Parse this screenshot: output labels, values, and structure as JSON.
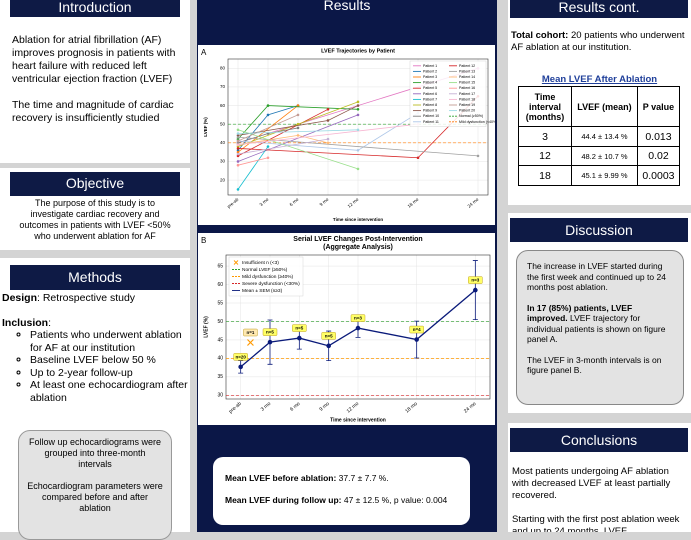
{
  "introduction": {
    "title": "Introduction",
    "paragraphs": [
      "Ablation for atrial fibrillation (AF) improves prognosis in patients with heart failure with reduced left ventricular ejection fraction (LVEF)",
      "The time and magnitude of cardiac recovery is insufficiently studied"
    ]
  },
  "objective": {
    "title": "Objective",
    "text": "The purpose of this study is to investigate cardiac recovery and outcomes in patients with LVEF <50% who underwent ablation for AF"
  },
  "methods": {
    "title": "Methods",
    "design_label": "Design",
    "design_text": ": Retrospective study",
    "inclusion_label": "Inclusion",
    "inclusion_suffix": ":",
    "bullets": [
      "Patients who underwent ablation for AF at our institution",
      "Baseline LVEF below 50 %",
      "Up to 2-year follow-up",
      "At least one echocardiogram after ablation"
    ],
    "note": [
      "Follow up echocardiograms were grouped into three-month intervals",
      "Echocardiogram parameters were compared before and after ablation"
    ]
  },
  "results": {
    "title": "Results",
    "summary": [
      {
        "label": "Mean LVEF before ablation:",
        "text": "37.7 ± 7.7 %."
      },
      {
        "label": "Mean LVEF during follow up:",
        "text": "47 ± 12.5 %, p value: 0.004"
      }
    ]
  },
  "chart_data": [
    {
      "type": "line",
      "panel": "A",
      "title": "LVEF Trajectories by Patient",
      "xlabel": "Time since intervention",
      "ylabel": "LVEF (%)",
      "xlim": [
        -1,
        25
      ],
      "ylim": [
        12,
        85
      ],
      "yticks": [
        20,
        30,
        40,
        50,
        60,
        70,
        80
      ],
      "xticks": [
        {
          "value": 0,
          "label": "pre-ab"
        },
        {
          "value": 3,
          "label": "3 mo"
        },
        {
          "value": 6,
          "label": "6 mo"
        },
        {
          "value": 9,
          "label": "9 mo"
        },
        {
          "value": 12,
          "label": "12 mo"
        },
        {
          "value": 18,
          "label": "18 mo"
        },
        {
          "value": 24,
          "label": "24 mo"
        }
      ],
      "grid": true,
      "legend": "upper right",
      "series": [
        {
          "name": "Patient 1",
          "color": "#e377c2",
          "x": [
            0,
            24
          ],
          "values": [
            40,
            80
          ]
        },
        {
          "name": "Patient 2",
          "color": "#1f77b4",
          "x": [
            0,
            3,
            6
          ],
          "values": [
            36,
            55,
            60
          ]
        },
        {
          "name": "Patient 3",
          "color": "#ff7f0e",
          "x": [
            0,
            6
          ],
          "values": [
            35,
            60
          ]
        },
        {
          "name": "Patient 4",
          "color": "#2ca02c",
          "x": [
            0,
            3,
            12
          ],
          "values": [
            42,
            60,
            58
          ]
        },
        {
          "name": "Patient 5",
          "color": "#d62728",
          "x": [
            0,
            9
          ],
          "values": [
            33,
            58
          ]
        },
        {
          "name": "Patient 6",
          "color": "#9467bd",
          "x": [
            0,
            12
          ],
          "values": [
            30,
            55
          ]
        },
        {
          "name": "Patient 7",
          "color": "#17becf",
          "x": [
            0,
            3
          ],
          "values": [
            15,
            38
          ]
        },
        {
          "name": "Patient 8",
          "color": "#bcbd22",
          "x": [
            0,
            6,
            12
          ],
          "values": [
            38,
            50,
            62
          ]
        },
        {
          "name": "Patient 9",
          "color": "#8c564b",
          "x": [
            0,
            9,
            12
          ],
          "values": [
            44,
            52,
            60
          ]
        },
        {
          "name": "Patient 10",
          "color": "#7f7f7f",
          "x": [
            0,
            3,
            6
          ],
          "values": [
            40,
            45,
            48
          ]
        },
        {
          "name": "Patient 11",
          "color": "#aec7e8",
          "x": [
            0,
            12,
            18
          ],
          "values": [
            41,
            36,
            56
          ]
        },
        {
          "name": "Patient 12",
          "color": "#d62728",
          "x": [
            0,
            18,
            24
          ],
          "values": [
            37,
            32,
            65
          ]
        },
        {
          "name": "Patient 13",
          "color": "#a0a0a0",
          "x": [
            0,
            24
          ],
          "values": [
            43,
            33
          ]
        },
        {
          "name": "Patient 14",
          "color": "#ffbb78",
          "x": [
            0,
            6,
            9
          ],
          "values": [
            39,
            44,
            40
          ]
        },
        {
          "name": "Patient 15",
          "color": "#98df8a",
          "x": [
            0,
            12
          ],
          "values": [
            47,
            26
          ]
        },
        {
          "name": "Patient 16",
          "color": "#ff9896",
          "x": [
            0,
            3
          ],
          "values": [
            28,
            32
          ]
        },
        {
          "name": "Patient 17",
          "color": "#c5b0d5",
          "x": [
            0,
            9
          ],
          "values": [
            34,
            42
          ]
        },
        {
          "name": "Patient 18",
          "color": "#f7b6d2",
          "x": [
            0,
            18
          ],
          "values": [
            39,
            50
          ]
        },
        {
          "name": "Patient 19",
          "color": "#c49c94",
          "x": [
            0,
            6
          ],
          "values": [
            41,
            55
          ]
        },
        {
          "name": "Patient 20",
          "color": "#9edae5",
          "x": [
            0,
            12
          ],
          "values": [
            45,
            47
          ]
        }
      ],
      "ref_lines": [
        {
          "name": "Normal (≥50%)",
          "value": 50,
          "color": "#2ca02c"
        },
        {
          "name": "Mild dysfunction (<40%)",
          "value": 40,
          "color": "#ff7f0e"
        }
      ]
    },
    {
      "type": "errorbar",
      "panel": "B",
      "title": "Serial LVEF Changes Post-Intervention",
      "subtitle": "(Aggregate Analysis)",
      "xlabel": "Time since intervention",
      "ylabel": "LVEF (%)",
      "xlim": [
        -1.5,
        25.5
      ],
      "ylim": [
        29,
        68
      ],
      "yticks": [
        30,
        35,
        40,
        45,
        50,
        55,
        60,
        65
      ],
      "xticks": [
        {
          "value": 0,
          "label": "pre-ab"
        },
        {
          "value": 3,
          "label": "3 mo"
        },
        {
          "value": 6,
          "label": "6 mo"
        },
        {
          "value": 9,
          "label": "9 mo"
        },
        {
          "value": 12,
          "label": "12 mo"
        },
        {
          "value": 18,
          "label": "18 mo"
        },
        {
          "value": 24,
          "label": "24 mo"
        }
      ],
      "grid": true,
      "legend": "upper left",
      "series": [
        {
          "name": "Insufficient n (<3)",
          "color": "#ff9900",
          "marker": "x",
          "x": [
            1
          ],
          "values": [
            44.3
          ],
          "labels": [
            "n=1"
          ]
        },
        {
          "name": "Mean ± SEM (n≥3)",
          "color": "#0a1a7a",
          "x": [
            0,
            3,
            6,
            9,
            12,
            18,
            24
          ],
          "values": [
            37.7,
            44.4,
            45.5,
            43.4,
            48.2,
            45.1,
            58.5
          ],
          "errors": [
            1.7,
            6,
            3,
            4,
            2.5,
            5,
            8
          ],
          "labels": [
            "n=20",
            "n=5",
            "n=5",
            "n=5",
            "n=3",
            "n=4",
            "n=3"
          ]
        }
      ],
      "ref_lines": [
        {
          "name": "Normal LVEF (≥50%)",
          "value": 50,
          "color": "#2ca02c"
        },
        {
          "name": "Mild dysfunction (≥40%)",
          "value": 40,
          "color": "#ff9900"
        },
        {
          "name": "Severe dysfunction (<30%)",
          "value": 30,
          "color": "#d62728"
        }
      ]
    }
  ],
  "results_cont": {
    "title": "Results cont.",
    "cohort_label": "Total cohort:",
    "cohort_text": "20 patients who underwent AF ablation at our institution.",
    "table": {
      "title": "Mean LVEF After Ablation",
      "header": [
        "Time interval (months)",
        "LVEF (mean)",
        "P value"
      ],
      "rows": [
        [
          "3",
          "44.4 ± 13.4 %",
          "0.013"
        ],
        [
          "12",
          "48.2 ± 10.7 %",
          "0.02"
        ],
        [
          "18",
          "45.1 ± 9.99 %",
          "0.0003"
        ]
      ]
    }
  },
  "discussion": {
    "title": "Discussion",
    "p1": "The increase in LVEF started during the first week and continued up to 24 months post ablation.",
    "p2_bold": "In 17 (85%) patients, LVEF improved.",
    "p2_text": "LVEF trajectory for individual patients is shown on figure panel A.",
    "p3": "The LVEF in 3-month intervals is on figure panel B."
  },
  "conclusions": {
    "title": "Conclusions",
    "paragraphs": [
      "Most patients undergoing AF ablation with decreased LVEF at least partially recovered.",
      "Starting with the first post ablation week and up to 24 months, LVEF"
    ]
  }
}
